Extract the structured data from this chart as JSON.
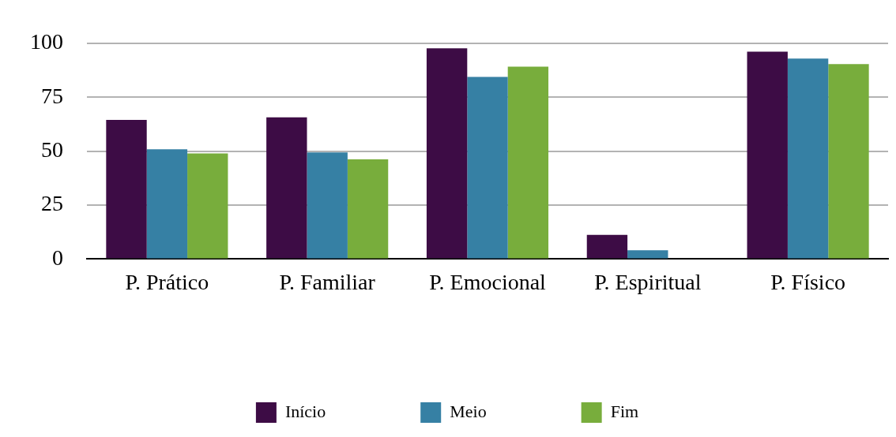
{
  "chart_data": {
    "type": "bar",
    "categories": [
      "P. Prático",
      "P. Familiar",
      "P. Emocional",
      "P. Espiritual",
      "P. Físico"
    ],
    "series": [
      {
        "name": "Início",
        "color": "#3d0c45",
        "values": [
          64.5,
          65.7,
          97.6,
          11.2,
          96.1
        ]
      },
      {
        "name": "Meio",
        "color": "#3680a4",
        "values": [
          50.9,
          49.4,
          84.4,
          4.1,
          92.9
        ]
      },
      {
        "name": "Fim",
        "color": "#78ad3c",
        "values": [
          48.9,
          46.2,
          89.1,
          0,
          90.3
        ]
      }
    ],
    "ylim": [
      0,
      100
    ],
    "yticks": [
      0,
      25,
      50,
      75,
      100
    ],
    "grid": "y",
    "legend": "bottom"
  }
}
